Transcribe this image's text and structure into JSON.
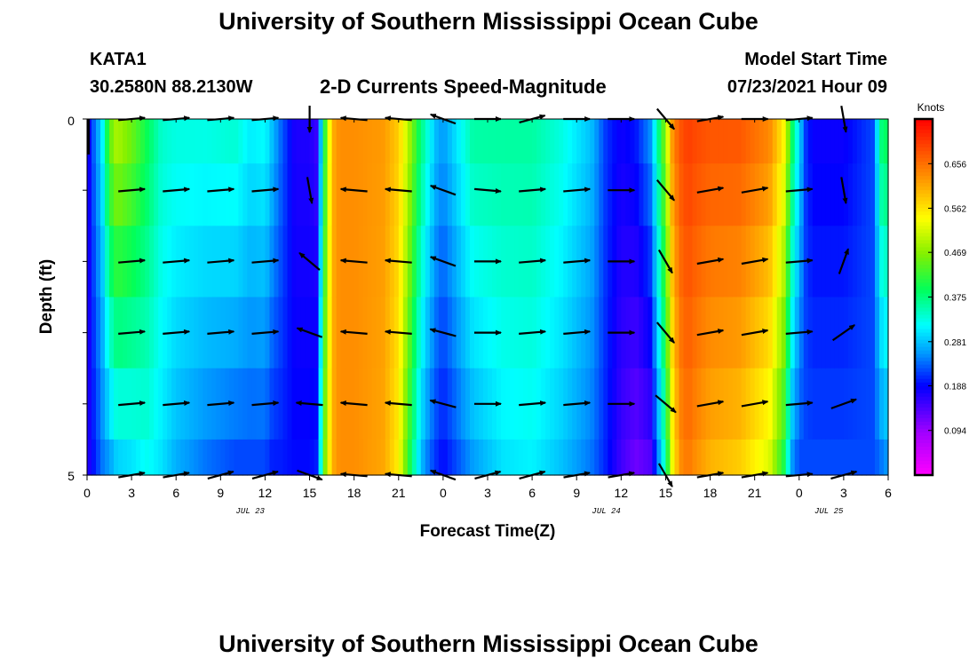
{
  "header": {
    "title_top": "University of Southern Mississippi Ocean Cube",
    "title_bottom": "University of Southern Mississippi Ocean Cube",
    "station": "KATA1",
    "coords": "30.2580N  88.2130W",
    "subtitle": "2-D Currents Speed-Magnitude",
    "model_label": "Model Start Time",
    "model_time": "07/23/2021 Hour 09"
  },
  "chart_data": {
    "type": "heatmap",
    "title": "2-D Currents Speed-Magnitude",
    "xlabel": "Forecast Time(Z)",
    "ylabel": "Depth (ft)",
    "x_tick_labels": [
      "0",
      "3",
      "6",
      "9",
      "12",
      "15",
      "18",
      "21",
      "0",
      "3",
      "6",
      "9",
      "12",
      "15",
      "18",
      "21",
      "0",
      "3",
      "6"
    ],
    "date_labels": [
      "JUL 23",
      "JUL 24",
      "JUL 25"
    ],
    "date_positions_hours": [
      11,
      35,
      50
    ],
    "xlim_hours": [
      0,
      54
    ],
    "ylim_ft": [
      0,
      5
    ],
    "y_tick_labels": [
      "0",
      "5"
    ],
    "depth_levels_ft": [
      0.25,
      1.0,
      2.0,
      3.0,
      4.0,
      5.0
    ],
    "colorbar": {
      "unit": "Knots",
      "ticks": [
        "0.656",
        "0.562",
        "0.469",
        "0.375",
        "0.281",
        "0.188",
        "0.094"
      ],
      "range": [
        0.0,
        0.75
      ]
    },
    "speed_columns": {
      "hours": [
        0,
        0.5,
        1,
        1.5,
        2,
        3,
        4,
        5,
        6,
        8,
        10,
        11,
        12,
        12.5,
        13,
        14,
        15,
        15.5,
        16,
        16.5,
        17,
        18,
        20,
        21,
        21.5,
        22,
        22.5,
        23,
        23.5,
        24,
        26,
        28,
        30,
        32,
        34,
        35,
        36,
        37,
        38,
        39,
        39.5,
        40,
        40.5,
        41,
        42,
        44,
        46,
        47,
        47.5,
        48,
        48.5,
        49,
        51,
        53,
        53.5,
        54
      ],
      "surface": [
        0.16,
        0.24,
        0.3,
        0.45,
        0.5,
        0.46,
        0.4,
        0.34,
        0.33,
        0.33,
        0.34,
        0.31,
        0.32,
        0.28,
        0.24,
        0.17,
        0.17,
        0.15,
        0.4,
        0.6,
        0.63,
        0.63,
        0.62,
        0.58,
        0.52,
        0.45,
        0.38,
        0.33,
        0.28,
        0.26,
        0.36,
        0.36,
        0.36,
        0.33,
        0.28,
        0.21,
        0.18,
        0.2,
        0.26,
        0.48,
        0.64,
        0.68,
        0.7,
        0.69,
        0.68,
        0.68,
        0.64,
        0.55,
        0.4,
        0.3,
        0.2,
        0.18,
        0.18,
        0.22,
        0.38,
        0.4
      ],
      "bottom": [
        0.16,
        0.2,
        0.24,
        0.26,
        0.29,
        0.3,
        0.32,
        0.3,
        0.27,
        0.24,
        0.22,
        0.22,
        0.22,
        0.2,
        0.2,
        0.19,
        0.19,
        0.2,
        0.45,
        0.6,
        0.63,
        0.63,
        0.61,
        0.55,
        0.45,
        0.36,
        0.28,
        0.24,
        0.21,
        0.19,
        0.26,
        0.3,
        0.31,
        0.28,
        0.24,
        0.2,
        0.15,
        0.12,
        0.14,
        0.36,
        0.55,
        0.63,
        0.65,
        0.63,
        0.6,
        0.58,
        0.52,
        0.4,
        0.26,
        0.22,
        0.22,
        0.22,
        0.22,
        0.22,
        0.24,
        0.26
      ]
    },
    "vectors": {
      "hours": [
        3,
        6,
        9,
        12,
        15,
        18,
        21,
        24,
        27,
        30,
        33,
        36,
        39,
        42,
        45,
        48,
        51
      ],
      "depths_ft": [
        0,
        1,
        2,
        3,
        4,
        5
      ],
      "direction_deg_by_row": [
        [
          5,
          5,
          5,
          5,
          -90,
          175,
          175,
          160,
          0,
          15,
          0,
          0,
          -50,
          10,
          0,
          5,
          -80
        ],
        [
          5,
          5,
          5,
          5,
          -80,
          175,
          175,
          160,
          -5,
          5,
          5,
          0,
          -50,
          10,
          10,
          5,
          -80
        ],
        [
          5,
          5,
          5,
          5,
          140,
          175,
          175,
          160,
          0,
          5,
          5,
          0,
          -60,
          10,
          10,
          5,
          70
        ],
        [
          5,
          5,
          5,
          5,
          160,
          175,
          175,
          165,
          0,
          5,
          5,
          0,
          -50,
          10,
          10,
          5,
          35
        ],
        [
          5,
          5,
          5,
          5,
          175,
          175,
          175,
          165,
          0,
          5,
          5,
          0,
          -40,
          10,
          10,
          5,
          20
        ],
        [
          10,
          10,
          15,
          15,
          -20,
          175,
          175,
          160,
          15,
          15,
          10,
          10,
          -60,
          10,
          10,
          5,
          15
        ]
      ]
    }
  }
}
